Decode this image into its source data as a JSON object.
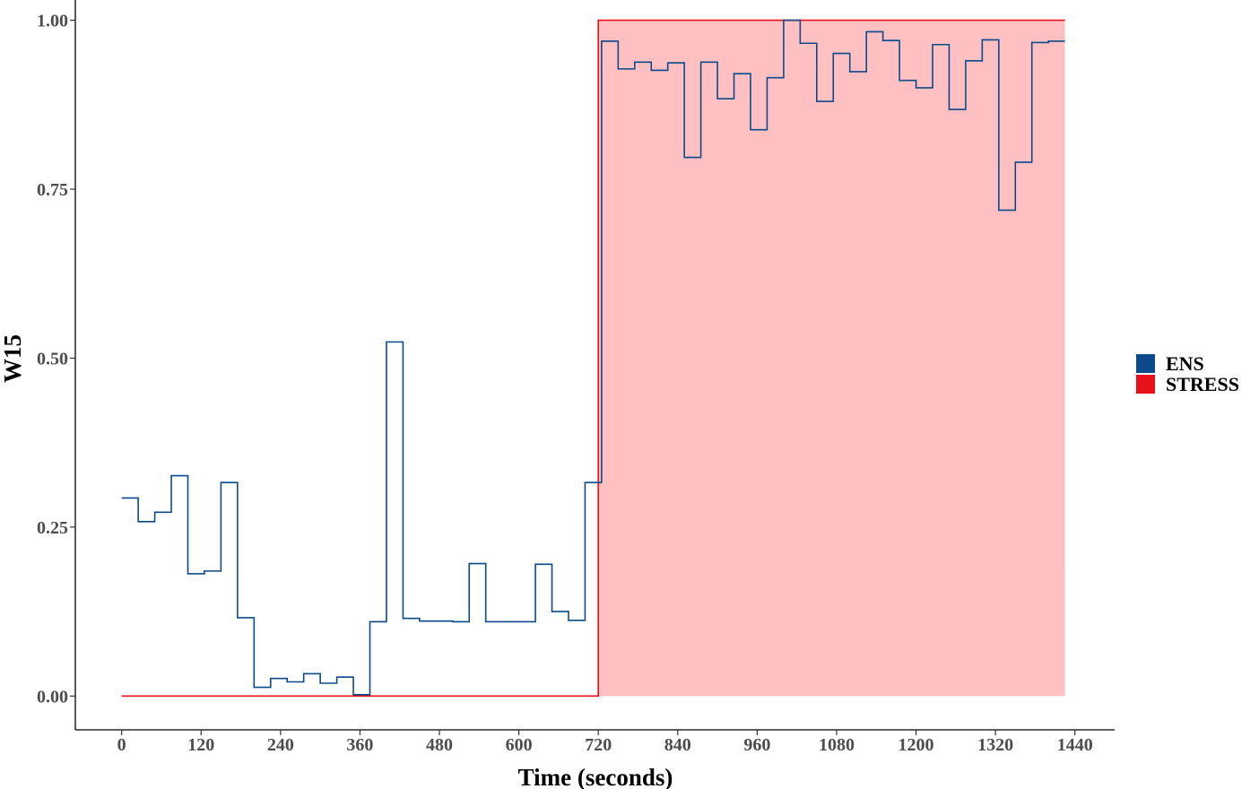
{
  "chart_data": {
    "type": "line",
    "title": "",
    "xlabel": "Time (seconds)",
    "ylabel": "W15",
    "xlim": [
      -70,
      1500
    ],
    "ylim": [
      -0.05,
      1.03
    ],
    "x_ticks": [
      0,
      120,
      240,
      360,
      480,
      600,
      720,
      840,
      960,
      1080,
      1200,
      1320,
      1440
    ],
    "x_tick_labels": [
      "0",
      "120",
      "240",
      "360",
      "480",
      "600",
      "720",
      "840",
      "960",
      "1080",
      "1200",
      "1320",
      "1440"
    ],
    "y_ticks": [
      0,
      0.25,
      0.5,
      0.75,
      1
    ],
    "y_tick_labels": [
      "0.00",
      "0.25",
      "0.50",
      "0.75",
      "1.00"
    ],
    "grid": false,
    "legend_position": "right",
    "series": [
      {
        "name": "ENS",
        "color": "#0B4A8B",
        "step": true,
        "x": [
          0,
          25,
          50,
          75,
          100,
          125,
          150,
          175,
          200,
          225,
          250,
          275,
          300,
          325,
          350,
          375,
          400,
          425,
          450,
          475,
          500,
          525,
          550,
          575,
          600,
          625,
          650,
          675,
          700,
          725,
          750,
          775,
          800,
          825,
          850,
          875,
          900,
          925,
          950,
          975,
          1000,
          1025,
          1050,
          1075,
          1100,
          1125,
          1150,
          1175,
          1200,
          1225,
          1250,
          1275,
          1300,
          1325,
          1350,
          1375,
          1400,
          1425
        ],
        "y": [
          0.293,
          0.258,
          0.272,
          0.326,
          0.181,
          0.185,
          0.316,
          0.116,
          0.013,
          0.026,
          0.021,
          0.033,
          0.019,
          0.028,
          0.002,
          0.11,
          0.524,
          0.115,
          0.111,
          0.111,
          0.11,
          0.196,
          0.11,
          0.11,
          0.11,
          0.195,
          0.125,
          0.112,
          0.316,
          0.969,
          0.928,
          0.938,
          0.926,
          0.937,
          0.797,
          0.938,
          0.884,
          0.921,
          0.838,
          0.915,
          1.0,
          0.966,
          0.88,
          0.951,
          0.924,
          0.983,
          0.97,
          0.911,
          0.9,
          0.964,
          0.868,
          0.94,
          0.971,
          0.719,
          0.79,
          0.967,
          0.969,
          0.969
        ]
      },
      {
        "name": "STRESS",
        "color": "#E8101A",
        "fill": "#FFC0C2",
        "step": true,
        "x": [
          0,
          720,
          1425
        ],
        "y": [
          0,
          1,
          1
        ]
      }
    ]
  }
}
